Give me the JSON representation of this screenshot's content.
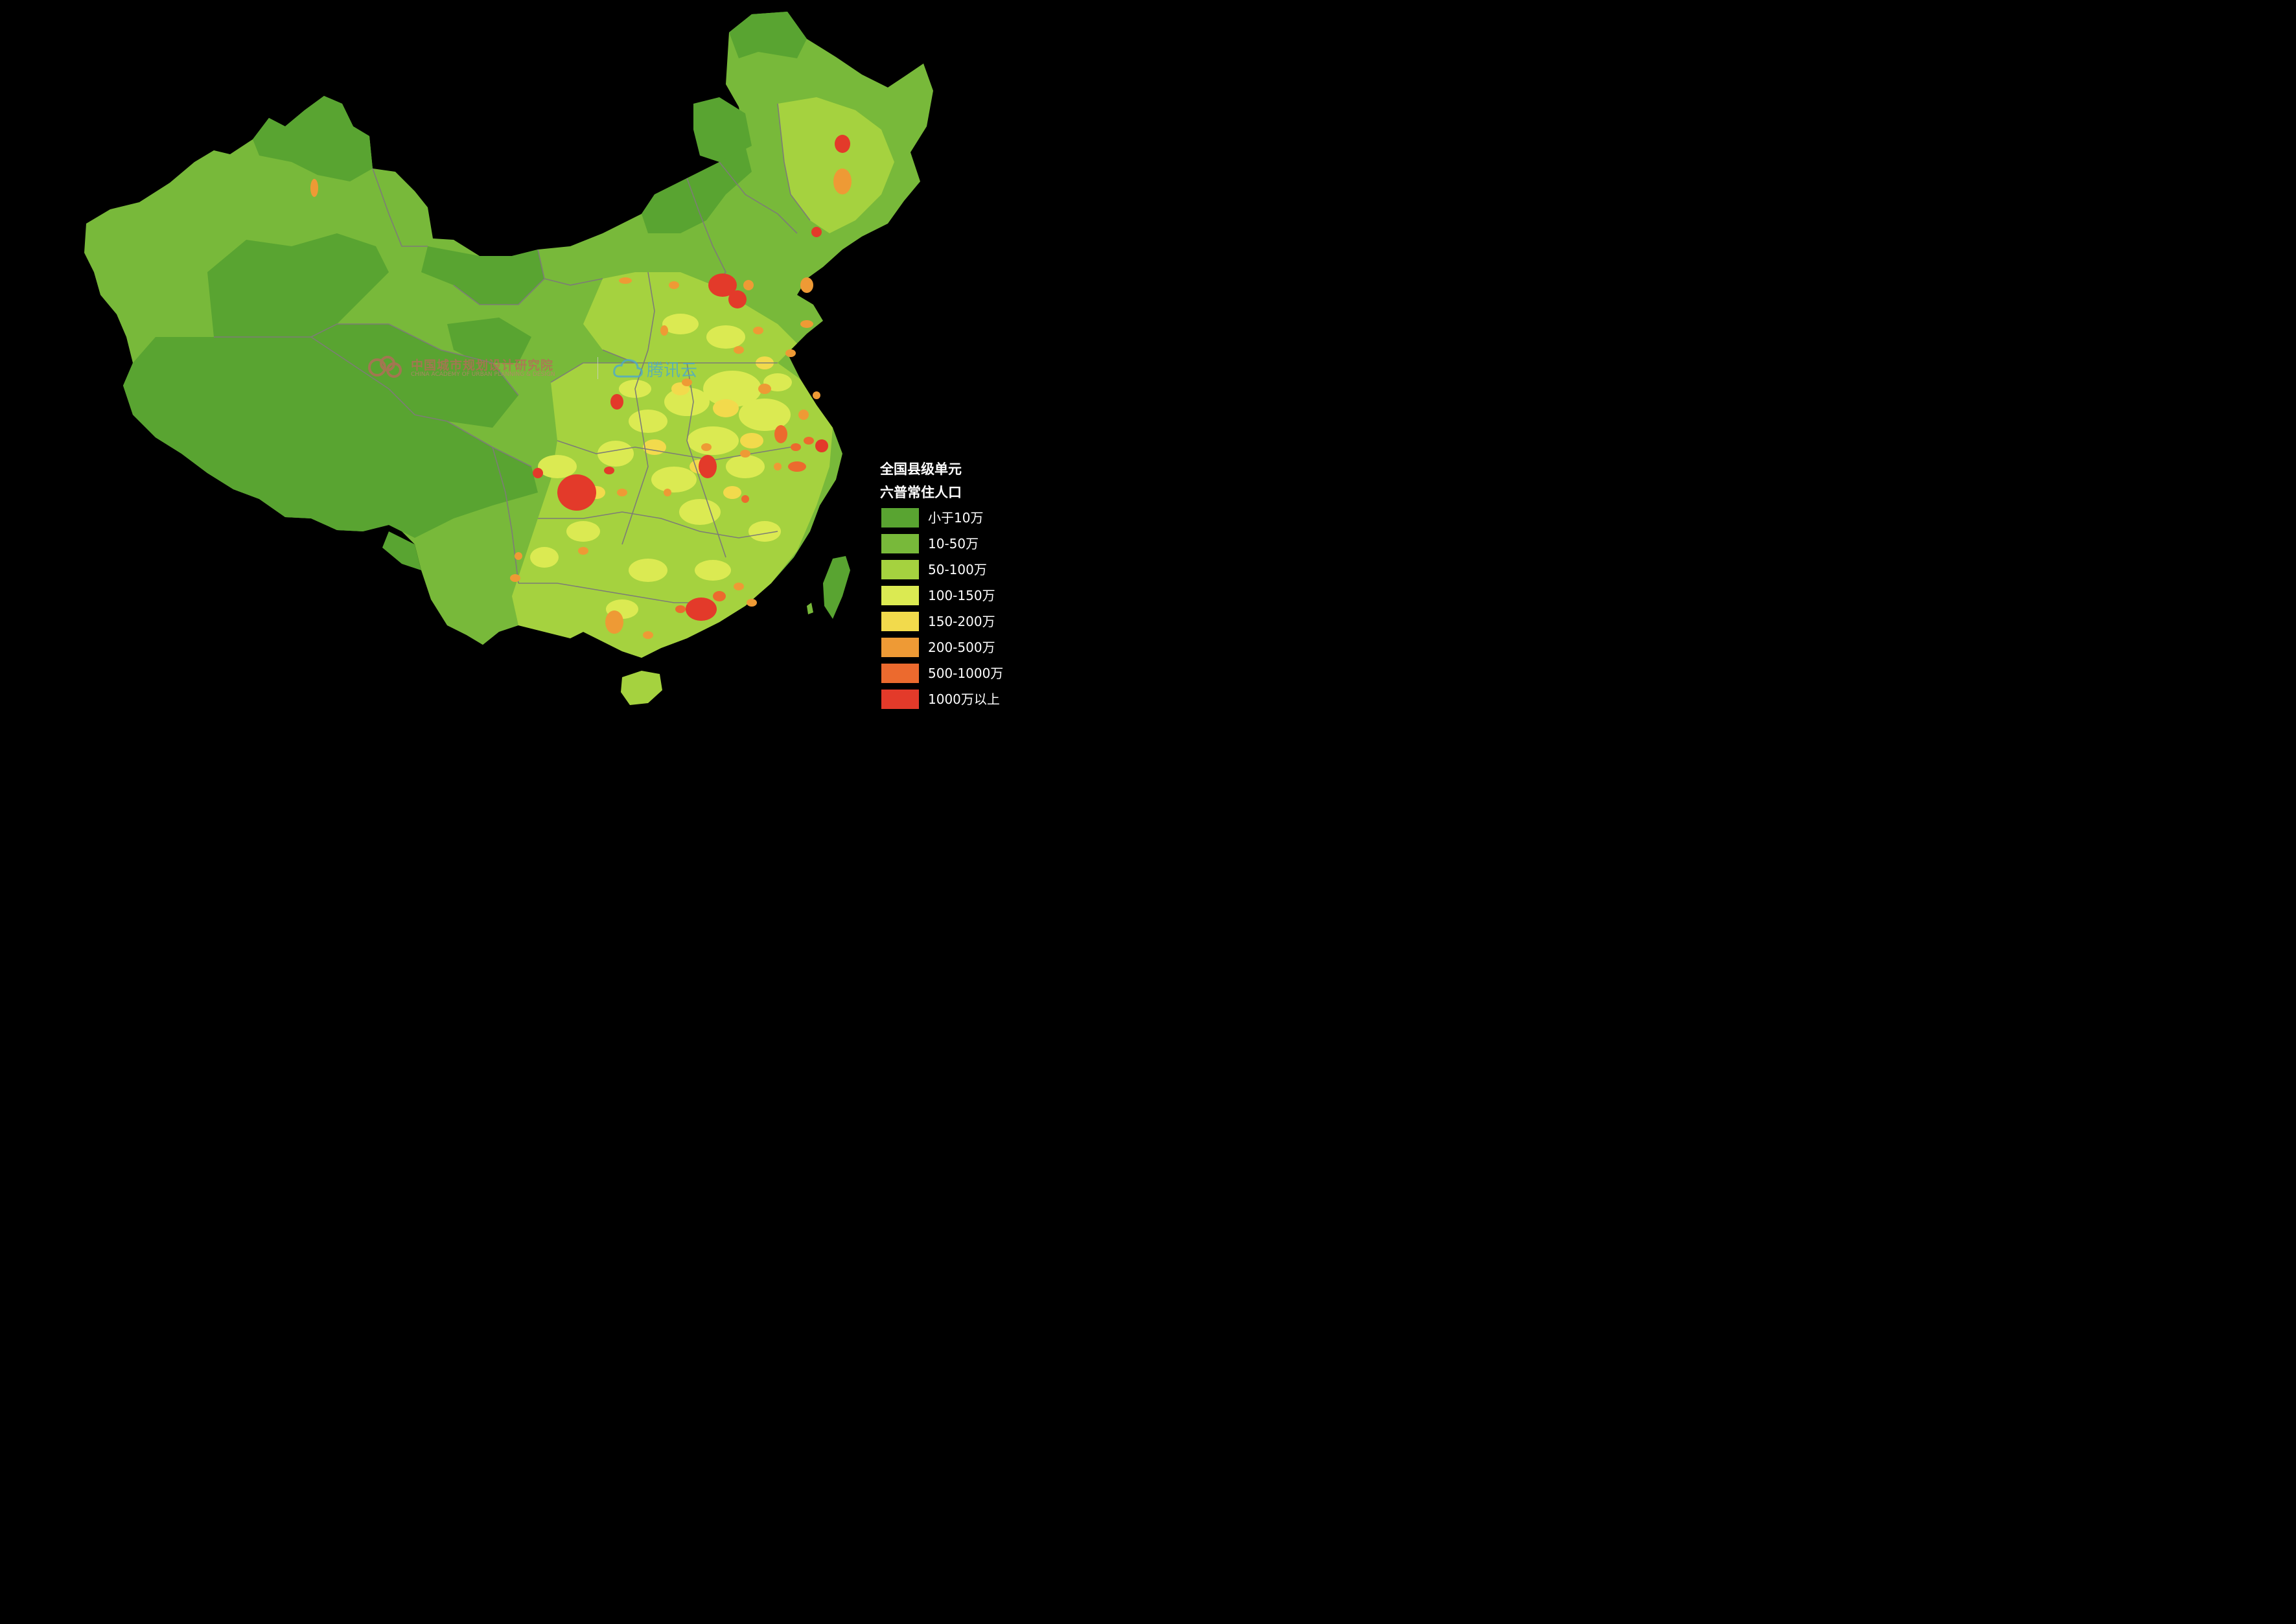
{
  "map": {
    "categories": [
      {
        "label": "小于10万",
        "color": "#59a431"
      },
      {
        "label": "10-50万",
        "color": "#78b93a"
      },
      {
        "label": "50-100万",
        "color": "#a5d23f"
      },
      {
        "label": "100-150万",
        "color": "#dbea52"
      },
      {
        "label": "150-200万",
        "color": "#f2da4c"
      },
      {
        "label": "200-500万",
        "color": "#ee9a35"
      },
      {
        "label": "500-1000万",
        "color": "#ec6a2e"
      },
      {
        "label": "1000万以上",
        "color": "#e33a2a"
      }
    ],
    "border_color": "#7d7d76",
    "background": "#000000"
  },
  "legend": {
    "title_line1": "全国县级单元",
    "title_line2": "六普常住人口",
    "items": [
      {
        "label": "小于10万"
      },
      {
        "label": "10-50万"
      },
      {
        "label": "50-100万"
      },
      {
        "label": "100-150万"
      },
      {
        "label": "150-200万"
      },
      {
        "label": "200-500万"
      },
      {
        "label": "500-1000万"
      },
      {
        "label": "1000万以上"
      }
    ]
  },
  "watermark": {
    "caupd_cn": "中国城市规划设计研究院",
    "caupd_en": "CHINA ACADEMY OF URBAN PLANNING & DESIGN",
    "tencent": "腾讯云"
  }
}
